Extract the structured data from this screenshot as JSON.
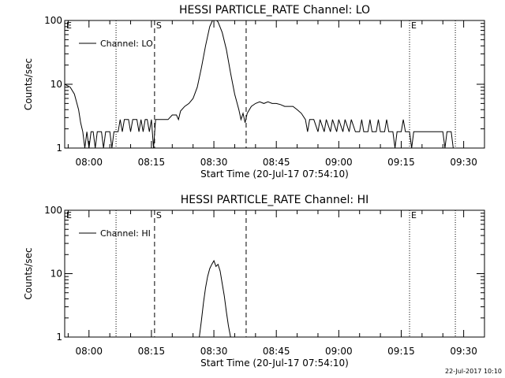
{
  "footer": {
    "timestamp": "22-Jul-2017 10:10"
  },
  "chart_data": [
    {
      "type": "line",
      "title": "HESSI PARTICLE_RATE Channel: LO",
      "xlabel": "Start Time (20-Jul-17 07:54:10)",
      "ylabel": "Counts/sec",
      "yscale": "log",
      "ylim": [
        1,
        100
      ],
      "xlim": [
        "07:54:10",
        "09:35:00"
      ],
      "xticks": [
        "08:00",
        "08:15",
        "08:30",
        "08:45",
        "09:00",
        "09:15",
        "09:30"
      ],
      "yticks": [
        "1",
        "10",
        "100"
      ],
      "legend": {
        "label": "Channel: LO",
        "position": "top-left"
      },
      "markers": [
        {
          "label": "E",
          "time": "07:54:10",
          "style": "dotted"
        },
        {
          "label": "",
          "time": "08:06:30",
          "style": "dotted"
        },
        {
          "label": "S",
          "time": "08:15:45",
          "style": "dashed"
        },
        {
          "label": "",
          "time": "08:37:45",
          "style": "dashed"
        },
        {
          "label": "E",
          "time": "09:17:00",
          "style": "dotted"
        },
        {
          "label": "",
          "time": "09:28:00",
          "style": "dotted"
        }
      ],
      "series": [
        {
          "name": "Channel: LO",
          "points": [
            [
              "07:54:10",
              10
            ],
            [
              "07:55:30",
              9
            ],
            [
              "07:56:30",
              7
            ],
            [
              "07:57:30",
              4
            ],
            [
              "07:58:00",
              2.5
            ],
            [
              "07:58:30",
              1.8
            ],
            [
              "07:59:00",
              1
            ],
            [
              "07:59:30",
              1.8
            ],
            [
              "08:00:00",
              1
            ],
            [
              "08:00:30",
              1.8
            ],
            [
              "08:01:00",
              1.8
            ],
            [
              "08:01:30",
              1
            ],
            [
              "08:02:00",
              1.8
            ],
            [
              "08:03:00",
              1.8
            ],
            [
              "08:03:30",
              1
            ],
            [
              "08:04:00",
              1.8
            ],
            [
              "08:05:00",
              1.8
            ],
            [
              "08:05:30",
              1
            ],
            [
              "08:06:00",
              1.8
            ],
            [
              "08:07:00",
              1.8
            ],
            [
              "08:07:30",
              2.8
            ],
            [
              "08:08:00",
              1.8
            ],
            [
              "08:08:30",
              2.8
            ],
            [
              "08:09:30",
              2.8
            ],
            [
              "08:10:00",
              1.8
            ],
            [
              "08:10:30",
              2.8
            ],
            [
              "08:11:30",
              2.8
            ],
            [
              "08:12:00",
              1.8
            ],
            [
              "08:12:30",
              2.8
            ],
            [
              "08:13:00",
              1.8
            ],
            [
              "08:13:30",
              2.8
            ],
            [
              "08:14:00",
              2.8
            ],
            [
              "08:14:30",
              1.8
            ],
            [
              "08:15:00",
              2.8
            ],
            [
              "08:15:30",
              1
            ],
            [
              "08:16:00",
              2.8
            ],
            [
              "08:18:00",
              2.8
            ],
            [
              "08:19:00",
              2.8
            ],
            [
              "08:20:00",
              3.3
            ],
            [
              "08:21:00",
              3.3
            ],
            [
              "08:21:30",
              2.8
            ],
            [
              "08:22:00",
              3.8
            ],
            [
              "08:23:00",
              4.5
            ],
            [
              "08:24:00",
              5
            ],
            [
              "08:25:00",
              6
            ],
            [
              "08:26:00",
              9
            ],
            [
              "08:27:00",
              18
            ],
            [
              "08:28:00",
              40
            ],
            [
              "08:29:00",
              80
            ],
            [
              "08:29:40",
              100
            ],
            [
              "08:30:20",
              105
            ],
            [
              "08:31:00",
              95
            ],
            [
              "08:32:00",
              65
            ],
            [
              "08:33:00",
              35
            ],
            [
              "08:34:00",
              15
            ],
            [
              "08:35:00",
              7
            ],
            [
              "08:36:00",
              4
            ],
            [
              "08:36:30",
              2.8
            ],
            [
              "08:37:00",
              3.5
            ],
            [
              "08:37:30",
              2.5
            ],
            [
              "08:38:00",
              3.5
            ],
            [
              "08:39:00",
              4.5
            ],
            [
              "08:40:00",
              5
            ],
            [
              "08:41:00",
              5.3
            ],
            [
              "08:42:00",
              5
            ],
            [
              "08:43:00",
              5.3
            ],
            [
              "08:44:00",
              5
            ],
            [
              "08:45:00",
              5
            ],
            [
              "08:46:00",
              4.8
            ],
            [
              "08:47:00",
              4.5
            ],
            [
              "08:48:00",
              4.5
            ],
            [
              "08:49:00",
              4.5
            ],
            [
              "08:50:00",
              4
            ],
            [
              "08:51:00",
              3.5
            ],
            [
              "08:52:00",
              2.8
            ],
            [
              "08:52:30",
              1.8
            ],
            [
              "08:53:00",
              2.8
            ],
            [
              "08:54:00",
              2.8
            ],
            [
              "08:55:00",
              1.8
            ],
            [
              "08:55:30",
              2.8
            ],
            [
              "08:56:30",
              1.8
            ],
            [
              "08:57:00",
              2.8
            ],
            [
              "08:58:00",
              1.8
            ],
            [
              "08:58:30",
              2.8
            ],
            [
              "08:59:30",
              1.8
            ],
            [
              "09:00:00",
              2.8
            ],
            [
              "09:01:00",
              1.8
            ],
            [
              "09:01:30",
              2.8
            ],
            [
              "09:02:30",
              1.8
            ],
            [
              "09:03:00",
              2.8
            ],
            [
              "09:04:00",
              1.8
            ],
            [
              "09:05:00",
              1.8
            ],
            [
              "09:05:30",
              2.8
            ],
            [
              "09:06:00",
              1.8
            ],
            [
              "09:07:00",
              1.8
            ],
            [
              "09:07:30",
              2.8
            ],
            [
              "09:08:00",
              1.8
            ],
            [
              "09:09:00",
              1.8
            ],
            [
              "09:09:30",
              2.8
            ],
            [
              "09:10:00",
              1.8
            ],
            [
              "09:11:00",
              1.8
            ],
            [
              "09:11:30",
              2.8
            ],
            [
              "09:12:00",
              1.8
            ],
            [
              "09:13:00",
              1.8
            ],
            [
              "09:13:30",
              1
            ],
            [
              "09:14:00",
              1.8
            ],
            [
              "09:15:00",
              1.8
            ],
            [
              "09:15:30",
              2.8
            ],
            [
              "09:16:00",
              1.8
            ],
            [
              "09:17:00",
              1.8
            ],
            [
              "09:17:30",
              1
            ],
            [
              "09:18:00",
              1.8
            ],
            [
              "09:25:00",
              1.8
            ],
            [
              "09:25:30",
              1
            ],
            [
              "09:26:00",
              1.8
            ],
            [
              "09:27:00",
              1.8
            ],
            [
              "09:27:30",
              1
            ]
          ]
        }
      ]
    },
    {
      "type": "line",
      "title": "HESSI PARTICLE_RATE Channel: HI",
      "xlabel": "Start Time (20-Jul-17 07:54:10)",
      "ylabel": "Counts/sec",
      "yscale": "log",
      "ylim": [
        1,
        100
      ],
      "xlim": [
        "07:54:10",
        "09:35:00"
      ],
      "xticks": [
        "08:00",
        "08:15",
        "08:30",
        "08:45",
        "09:00",
        "09:15",
        "09:30"
      ],
      "yticks": [
        "1",
        "10",
        "100"
      ],
      "legend": {
        "label": "Channel: HI",
        "position": "top-left"
      },
      "markers": [
        {
          "label": "E",
          "time": "07:54:10",
          "style": "dotted"
        },
        {
          "label": "",
          "time": "08:06:30",
          "style": "dotted"
        },
        {
          "label": "S",
          "time": "08:15:45",
          "style": "dashed"
        },
        {
          "label": "",
          "time": "08:37:45",
          "style": "dashed"
        },
        {
          "label": "E",
          "time": "09:17:00",
          "style": "dotted"
        },
        {
          "label": "",
          "time": "09:28:00",
          "style": "dotted"
        }
      ],
      "series": [
        {
          "name": "Channel: HI",
          "points": [
            [
              "08:26:30",
              1
            ],
            [
              "08:27:00",
              1.8
            ],
            [
              "08:27:30",
              3.5
            ],
            [
              "08:28:00",
              6
            ],
            [
              "08:28:30",
              9
            ],
            [
              "08:29:00",
              12
            ],
            [
              "08:29:30",
              14
            ],
            [
              "08:30:00",
              16
            ],
            [
              "08:30:30",
              13
            ],
            [
              "08:31:00",
              14
            ],
            [
              "08:31:30",
              11
            ],
            [
              "08:32:00",
              7
            ],
            [
              "08:32:30",
              4.5
            ],
            [
              "08:33:00",
              2.5
            ],
            [
              "08:33:30",
              1.5
            ],
            [
              "08:34:00",
              1
            ]
          ]
        }
      ]
    }
  ]
}
